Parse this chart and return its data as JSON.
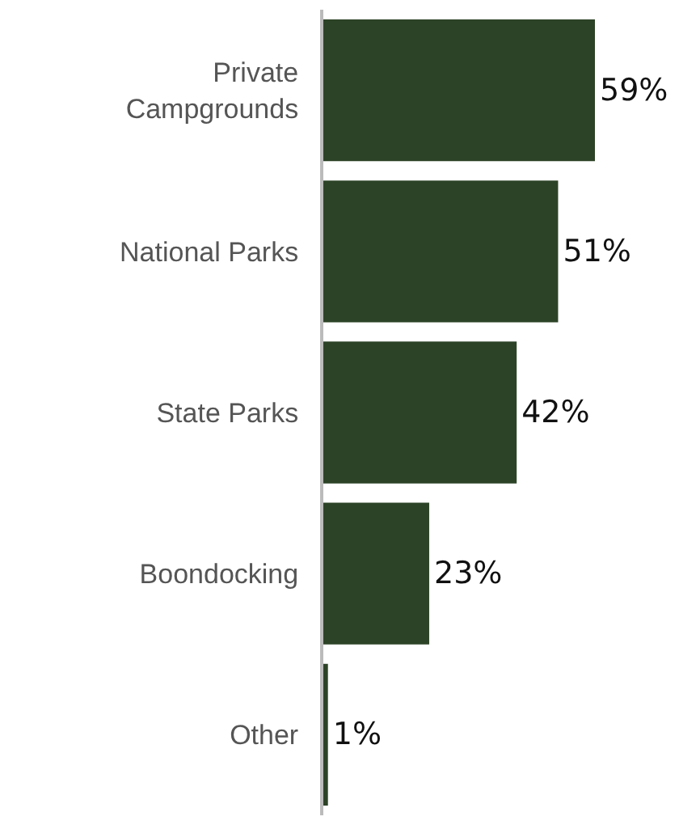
{
  "chart_data": {
    "type": "bar",
    "orientation": "horizontal",
    "categories": [
      "Private Campgrounds",
      "National Parks",
      "State Parks",
      "Boondocking",
      "Other"
    ],
    "values": [
      59,
      51,
      42,
      23,
      1
    ],
    "value_labels": [
      "59%",
      "51%",
      "42%",
      "23%",
      "1%"
    ],
    "color": "#2d4327"
  }
}
